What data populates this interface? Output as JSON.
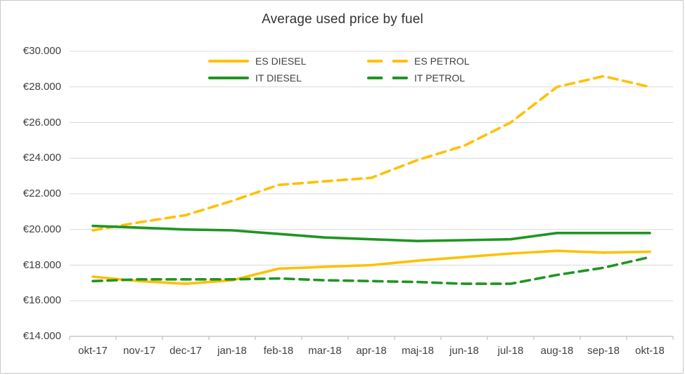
{
  "window": {
    "background": "#ffffff",
    "border_color": "#c9c9c9"
  },
  "chart_data": {
    "type": "line",
    "title": "Average used price by fuel",
    "categories": [
      "okt-17",
      "nov-17",
      "dec-17",
      "jan-18",
      "feb-18",
      "mar-18",
      "apr-18",
      "maj-18",
      "jun-18",
      "jul-18",
      "aug-18",
      "sep-18",
      "okt-18"
    ],
    "series": [
      {
        "name": "ES DIESEL",
        "color": "#FFC000",
        "dashed": false,
        "values": [
          17350,
          17100,
          16950,
          17150,
          17800,
          17900,
          18000,
          18250,
          18450,
          18650,
          18800,
          18700,
          18750
        ]
      },
      {
        "name": "ES PETROL",
        "color": "#FFC000",
        "dashed": true,
        "values": [
          19950,
          20400,
          20800,
          21600,
          22500,
          22700,
          22900,
          23900,
          24700,
          26000,
          28000,
          28600,
          28000
        ]
      },
      {
        "name": "IT DIESEL",
        "color": "#1F9522",
        "dashed": false,
        "values": [
          20200,
          20100,
          20000,
          19950,
          19750,
          19550,
          19450,
          19350,
          19400,
          19450,
          19800,
          19800,
          19800
        ]
      },
      {
        "name": "IT PETROL",
        "color": "#1F9522",
        "dashed": true,
        "values": [
          17100,
          17200,
          17200,
          17200,
          17250,
          17150,
          17100,
          17050,
          16950,
          16950,
          17450,
          17850,
          18450
        ]
      }
    ],
    "y_axis": {
      "min": 14000,
      "max": 30000,
      "step": 2000,
      "ticks": [
        {
          "value": 30000,
          "label": "€30.000"
        },
        {
          "value": 28000,
          "label": "€28.000"
        },
        {
          "value": 26000,
          "label": "€26.000"
        },
        {
          "value": 24000,
          "label": "€24.000"
        },
        {
          "value": 22000,
          "label": "€22.000"
        },
        {
          "value": 20000,
          "label": "€20.000"
        },
        {
          "value": 18000,
          "label": "€18.000"
        },
        {
          "value": 16000,
          "label": "€16.000"
        },
        {
          "value": 14000,
          "label": "€14.000"
        }
      ]
    },
    "grid": true,
    "legend_position": "top-center",
    "legend_rows": [
      [
        "ES DIESEL",
        "ES PETROL"
      ],
      [
        "IT DIESEL",
        "IT PETROL"
      ]
    ],
    "colors": {
      "gridline": "#D9D9D9",
      "axis": "#BFBFBF",
      "text": "#404040"
    }
  }
}
